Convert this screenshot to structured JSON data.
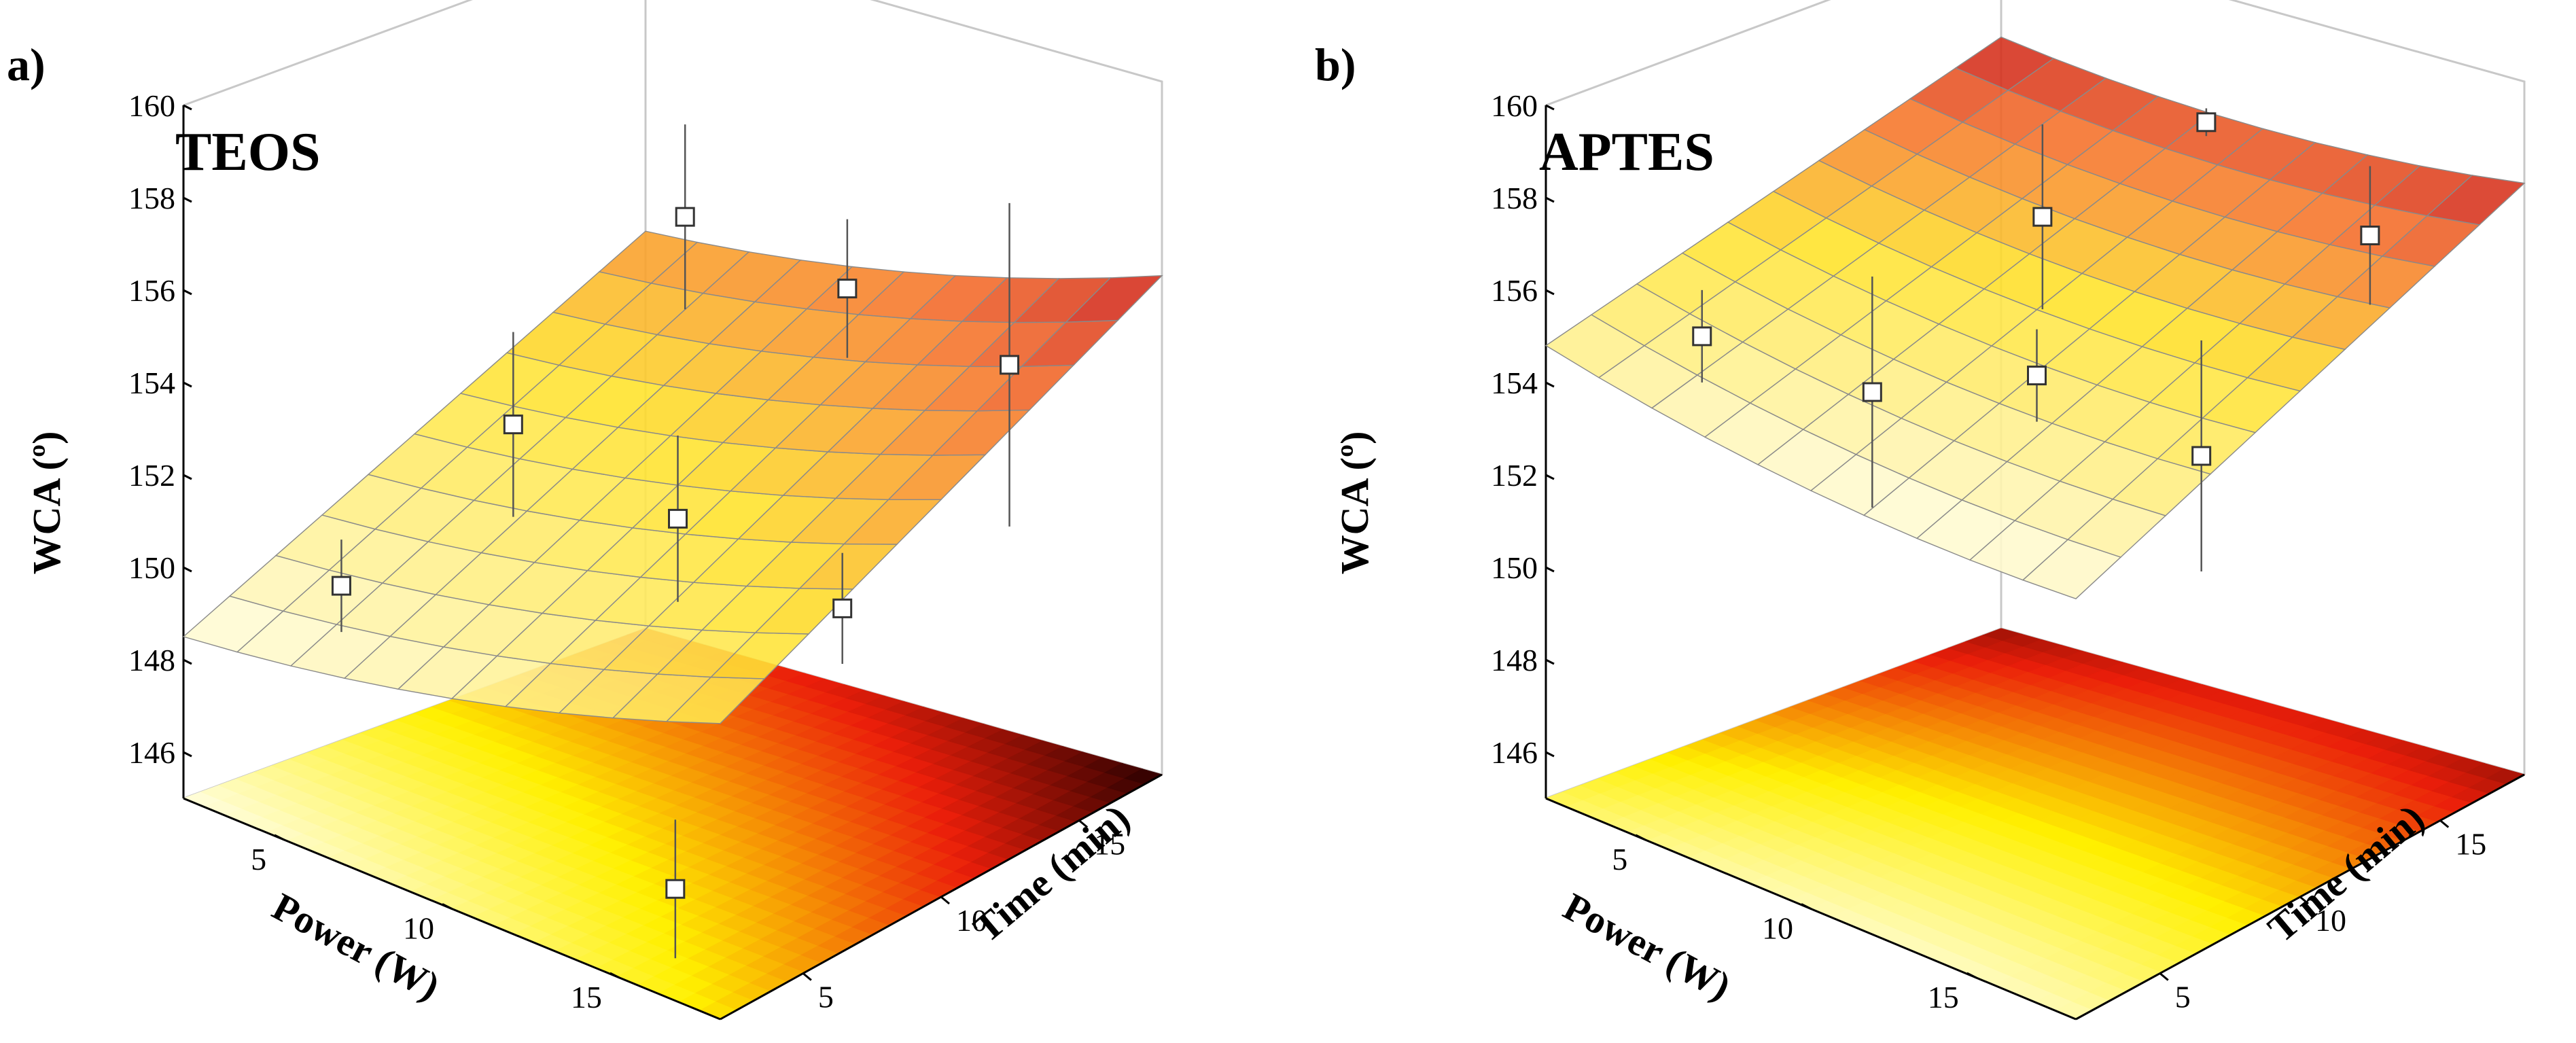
{
  "chart_data": [
    {
      "type": "surface3d",
      "panel_label": "a)",
      "title": "TEOS",
      "xlabel": "Power (W)",
      "ylabel": "Time (min)",
      "zlabel": "WCA (º)",
      "xlim": [
        2,
        18
      ],
      "ylim": [
        2,
        18
      ],
      "zlim": [
        145,
        160
      ],
      "xticks": [
        "5",
        "10",
        "15"
      ],
      "yticks": [
        "5",
        "10",
        "15"
      ],
      "zticks": [
        "146",
        "148",
        "150",
        "152",
        "154",
        "156",
        "158",
        "160"
      ],
      "surface": {
        "power_range": [
          2,
          18
        ],
        "time_range": [
          2,
          18
        ],
        "corner_values": {
          "low_low": 148.1,
          "high_low": 151.0,
          "low_high": 153.2,
          "high_high": 155.4
        },
        "grid": 10
      },
      "points": [
        {
          "power": 5,
          "time": 4,
          "wca": 150.0,
          "err": 1.0
        },
        {
          "power": 5,
          "time": 10,
          "wca": 152.0,
          "err": 2.0
        },
        {
          "power": 5,
          "time": 16,
          "wca": 155.0,
          "err": 2.0
        },
        {
          "power": 10,
          "time": 10,
          "wca": 151.2,
          "err": 1.8
        },
        {
          "power": 15,
          "time": 4,
          "wca": 146.3,
          "err": 1.5
        },
        {
          "power": 15,
          "time": 10,
          "wca": 150.5,
          "err": 1.2
        },
        {
          "power": 10,
          "time": 16,
          "wca": 154.5,
          "err": 1.5
        },
        {
          "power": 15,
          "time": 16,
          "wca": 153.9,
          "err": 3.5
        }
      ]
    },
    {
      "type": "surface3d",
      "panel_label": "b)",
      "title": "APTES",
      "xlabel": "Power (W)",
      "ylabel": "Time (min)",
      "zlabel": "WCA (º)",
      "xlim": [
        2,
        18
      ],
      "ylim": [
        2,
        18
      ],
      "zlim": [
        145,
        160
      ],
      "xticks": [
        "5",
        "10",
        "15"
      ],
      "yticks": [
        "5",
        "10",
        "15"
      ],
      "zticks": [
        "146",
        "148",
        "150",
        "152",
        "154",
        "156",
        "158",
        "160"
      ],
      "surface": {
        "power_range": [
          2,
          18
        ],
        "time_range": [
          2,
          18
        ],
        "corner_values": {
          "low_low": 154.4,
          "high_low": 153.7,
          "low_high": 157.4,
          "high_high": 157.4
        },
        "grid": 10
      },
      "points": [
        {
          "power": 5,
          "time": 4,
          "wca": 155.4,
          "err": 1.0
        },
        {
          "power": 5,
          "time": 10,
          "wca": 152.7,
          "err": 2.5
        },
        {
          "power": 5,
          "time": 16,
          "wca": 155.0,
          "err": 2.0
        },
        {
          "power": 10,
          "time": 10,
          "wca": 154.3,
          "err": 1.0
        },
        {
          "power": 15,
          "time": 10,
          "wca": 153.8,
          "err": 2.5
        },
        {
          "power": 10,
          "time": 16,
          "wca": 158.1,
          "err": 0.3
        },
        {
          "power": 15,
          "time": 16,
          "wca": 156.7,
          "err": 1.5
        }
      ]
    }
  ]
}
